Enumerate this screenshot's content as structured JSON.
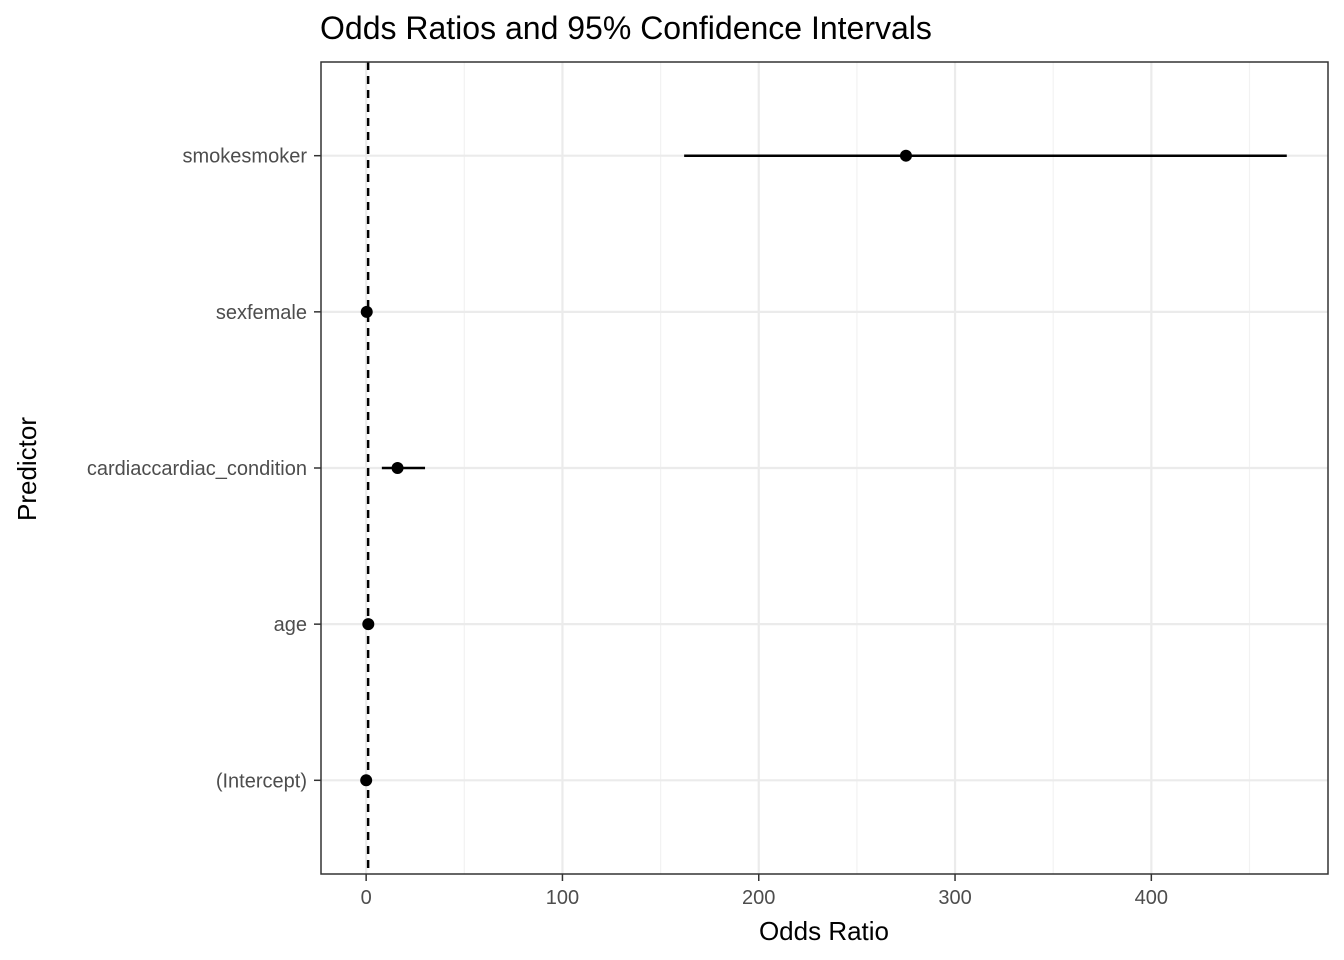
{
  "chart_data": {
    "type": "scatter",
    "title": "Odds Ratios and 95% Confidence Intervals",
    "xlabel": "Odds Ratio",
    "ylabel": "Predictor",
    "categories": [
      "smokesmoker",
      "sexfemale",
      "cardiaccardiac_condition",
      "age",
      "(Intercept)"
    ],
    "estimates": [
      275,
      0.3,
      16,
      1.1,
      0.02
    ],
    "ci_lower": [
      162,
      0.15,
      8,
      1.0,
      0.005
    ],
    "ci_upper": [
      469,
      0.6,
      30,
      1.2,
      0.06
    ],
    "reference_line": 1,
    "xlim": [
      -23,
      490
    ],
    "x_ticks": [
      0,
      100,
      200,
      300,
      400
    ],
    "x_tick_labels": [
      "0",
      "100",
      "200",
      "300",
      "400"
    ],
    "grid": true,
    "colors": {
      "point": "#000000",
      "interval": "#000000",
      "reference_line": "#000000",
      "grid_major": "#ebebeb",
      "grid_minor": "#f2f2f2",
      "panel_border": "#333333",
      "tick_label": "#4d4d4d"
    }
  }
}
